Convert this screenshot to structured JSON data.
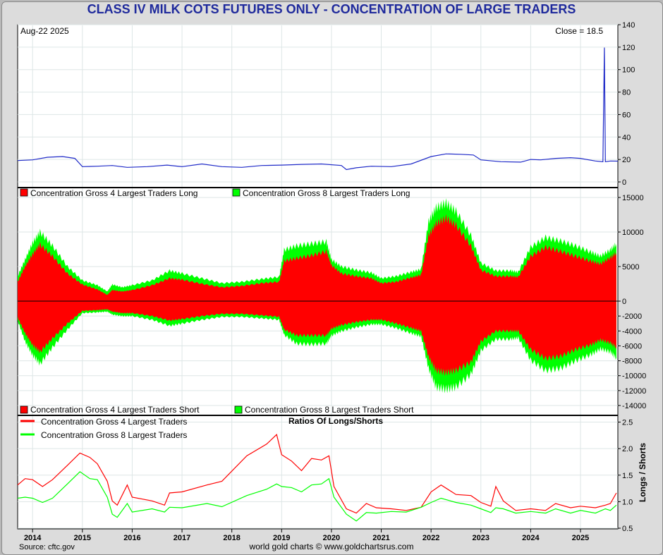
{
  "header": {
    "title": "CLASS IV MILK COTS FUTURES ONLY - CONCENTRATION OF LARGE TRADERS"
  },
  "footer": {
    "source": "Source: cftc.gov",
    "credit": "world gold charts © www.goldchartsrus.com"
  },
  "colors": {
    "title": "#1f2a9c",
    "price_line": "#1f2ac8",
    "red": "#ff0000",
    "green": "#00ff00",
    "grid": "#dde6e6"
  },
  "chart_data": [
    {
      "type": "line",
      "date_label": "Aug-22  2025",
      "close_label": "Close = 18.5",
      "ylim": [
        0,
        140
      ],
      "yticks": [
        0,
        20,
        40,
        60,
        80,
        100,
        120,
        140
      ],
      "xlim": [
        2013.7,
        2025.75
      ],
      "xticks": [
        2014,
        2015,
        2016,
        2017,
        2018,
        2019,
        2020,
        2021,
        2022,
        2023,
        2024,
        2025
      ],
      "series": [
        {
          "x": [
            2013.7,
            2014.0,
            2014.3,
            2014.6,
            2014.85,
            2015.0,
            2015.3,
            2015.6,
            2015.9,
            2016.3,
            2016.7,
            2017.0,
            2017.4,
            2017.8,
            2018.2,
            2018.6,
            2019.0,
            2019.4,
            2019.8,
            2020.2,
            2020.3,
            2020.5,
            2020.8,
            2021.2,
            2021.6,
            2022.0,
            2022.3,
            2022.6,
            2022.85,
            2023.0,
            2023.4,
            2023.8,
            2024.0,
            2024.2,
            2024.5,
            2024.8,
            2025.0,
            2025.3,
            2025.45,
            2025.48,
            2025.5,
            2025.6,
            2025.75
          ],
          "values": [
            19,
            20,
            22,
            23,
            21,
            14,
            14,
            15,
            13,
            14,
            15,
            14,
            16,
            14,
            13,
            15,
            15,
            16,
            16,
            15,
            11,
            13,
            14,
            14,
            16,
            23,
            25,
            25,
            24,
            20,
            18,
            18,
            20,
            20,
            21,
            22,
            21,
            19,
            18,
            120,
            18,
            19,
            18.5
          ]
        }
      ]
    },
    {
      "type": "area",
      "ylim": [
        -15000,
        16000
      ],
      "yticks": [
        15000,
        10000,
        5000,
        0,
        -2000,
        -4000,
        -6000,
        -8000,
        -10000,
        -12000,
        -14000
      ],
      "legend_top": [
        "Concentration Gross 4 Largest Traders Long",
        "Concentration Gross 8 Largest Traders Long"
      ],
      "legend_bottom": [
        "Concentration Gross 4 Largest Traders Short",
        "Concentration Gross 8 Largest Traders Short"
      ],
      "x": [
        2013.7,
        2013.85,
        2014.0,
        2014.15,
        2014.4,
        2014.7,
        2015.0,
        2015.3,
        2015.5,
        2015.6,
        2015.8,
        2016.0,
        2016.4,
        2016.75,
        2017.0,
        2017.4,
        2017.8,
        2018.2,
        2018.6,
        2018.95,
        2019.05,
        2019.3,
        2019.6,
        2019.9,
        2020.0,
        2020.2,
        2020.5,
        2020.8,
        2021.0,
        2021.3,
        2021.6,
        2021.8,
        2021.95,
        2022.1,
        2022.3,
        2022.5,
        2022.8,
        2023.0,
        2023.3,
        2023.6,
        2023.75,
        2024.0,
        2024.3,
        2024.6,
        2024.9,
        2025.2,
        2025.4,
        2025.6,
        2025.72
      ],
      "series": [
        {
          "name": "Concentration Gross 4 Largest Traders Long",
          "values": [
            2800,
            5000,
            6800,
            8200,
            6500,
            4000,
            2400,
            1700,
            900,
            1600,
            1400,
            1600,
            2300,
            3300,
            3100,
            2500,
            2000,
            2200,
            2600,
            2800,
            5800,
            6200,
            6600,
            7200,
            5200,
            4000,
            3600,
            3300,
            2600,
            2800,
            3400,
            3800,
            9500,
            11200,
            12000,
            11000,
            8000,
            4500,
            3600,
            3600,
            3500,
            6500,
            7800,
            7200,
            6500,
            5800,
            5400,
            6300,
            7000
          ]
        },
        {
          "name": "Concentration Gross 8 Largest Traders Long",
          "values": [
            3600,
            6000,
            8400,
            10000,
            8000,
            5000,
            3000,
            2300,
            1400,
            2400,
            2000,
            2300,
            3000,
            4400,
            4000,
            3300,
            2600,
            2800,
            3200,
            3500,
            7400,
            8000,
            8300,
            8600,
            6000,
            5000,
            4500,
            4100,
            3300,
            3600,
            4200,
            4600,
            11500,
            13500,
            14200,
            13000,
            9500,
            5500,
            4400,
            4400,
            4200,
            7800,
            9200,
            8700,
            8000,
            7100,
            6500,
            7400,
            8300
          ]
        },
        {
          "name": "Concentration Gross 4 Largest Traders Short",
          "values": [
            -2200,
            -4300,
            -5900,
            -6800,
            -5000,
            -3000,
            -1300,
            -1200,
            -1100,
            -1400,
            -1600,
            -1600,
            -2000,
            -2600,
            -2400,
            -2000,
            -1700,
            -1700,
            -1900,
            -2100,
            -3800,
            -4600,
            -4600,
            -4600,
            -3700,
            -3200,
            -2800,
            -2500,
            -2500,
            -3000,
            -3600,
            -4000,
            -7500,
            -9300,
            -9600,
            -9300,
            -8200,
            -5400,
            -4000,
            -4000,
            -4000,
            -6500,
            -7700,
            -7400,
            -6500,
            -5900,
            -5200,
            -5600,
            -6200
          ]
        },
        {
          "name": "Concentration Gross 8 Largest Traders Short",
          "values": [
            -2600,
            -5400,
            -7200,
            -8400,
            -6200,
            -3800,
            -1600,
            -1500,
            -1400,
            -1800,
            -2000,
            -2000,
            -2500,
            -3300,
            -3000,
            -2500,
            -2100,
            -2100,
            -2300,
            -2500,
            -4500,
            -5700,
            -5800,
            -5700,
            -4600,
            -4000,
            -3500,
            -3100,
            -3100,
            -3600,
            -4300,
            -4700,
            -9000,
            -11500,
            -11800,
            -11500,
            -9800,
            -6600,
            -5100,
            -5100,
            -4900,
            -7900,
            -9300,
            -9000,
            -8000,
            -7200,
            -6400,
            -6800,
            -7600
          ]
        }
      ]
    },
    {
      "type": "line",
      "title": "Ratios Of Longs/Shorts",
      "ylabel": "Longs / Shorts",
      "ylim": [
        0.5,
        2.6
      ],
      "yticks": [
        0.5,
        1.0,
        1.5,
        2.0,
        2.5
      ],
      "xticks": [
        2014,
        2015,
        2016,
        2017,
        2018,
        2019,
        2020,
        2021,
        2022,
        2023,
        2024,
        2025
      ],
      "x": [
        2013.7,
        2013.85,
        2014.0,
        2014.2,
        2014.4,
        2014.7,
        2014.95,
        2015.15,
        2015.3,
        2015.5,
        2015.6,
        2015.7,
        2015.9,
        2016.0,
        2016.4,
        2016.65,
        2016.75,
        2017.0,
        2017.5,
        2017.8,
        2018.3,
        2018.7,
        2018.9,
        2019.0,
        2019.2,
        2019.4,
        2019.6,
        2019.8,
        2019.95,
        2020.05,
        2020.3,
        2020.5,
        2020.7,
        2020.9,
        2021.2,
        2021.5,
        2021.8,
        2022.0,
        2022.2,
        2022.5,
        2022.8,
        2023.0,
        2023.2,
        2023.3,
        2023.45,
        2023.7,
        2024.0,
        2024.3,
        2024.5,
        2024.8,
        2025.0,
        2025.3,
        2025.5,
        2025.6,
        2025.72
      ],
      "series": [
        {
          "name": "Concentration Gross 4 Largest Traders",
          "values": [
            1.3,
            1.45,
            1.4,
            1.3,
            1.4,
            1.7,
            1.9,
            1.85,
            1.7,
            1.4,
            1.0,
            0.95,
            1.3,
            1.1,
            1.0,
            0.95,
            1.15,
            1.2,
            1.3,
            1.4,
            1.85,
            2.1,
            2.25,
            1.9,
            1.75,
            1.6,
            1.8,
            1.8,
            1.85,
            1.3,
            0.85,
            0.8,
            0.95,
            0.9,
            0.85,
            0.85,
            0.88,
            1.2,
            1.3,
            1.15,
            1.1,
            1.0,
            0.9,
            1.3,
            1.0,
            0.85,
            0.85,
            0.85,
            0.95,
            0.9,
            0.9,
            0.9,
            0.92,
            0.98,
            1.15
          ]
        },
        {
          "name": "Concentration Gross 8 Largest Traders",
          "values": [
            1.05,
            1.1,
            1.05,
            1.0,
            1.05,
            1.35,
            1.55,
            1.45,
            1.4,
            1.1,
            0.75,
            0.72,
            0.95,
            0.82,
            0.85,
            0.82,
            0.88,
            0.9,
            0.95,
            0.92,
            1.1,
            1.25,
            1.32,
            1.3,
            1.25,
            1.2,
            1.3,
            1.35,
            1.42,
            1.1,
            0.75,
            0.65,
            0.78,
            0.8,
            0.8,
            0.82,
            0.88,
            1.0,
            1.05,
            1.0,
            0.92,
            0.88,
            0.78,
            0.9,
            0.85,
            0.8,
            0.8,
            0.8,
            0.85,
            0.8,
            0.82,
            0.8,
            0.85,
            0.85,
            0.92
          ]
        }
      ]
    }
  ]
}
